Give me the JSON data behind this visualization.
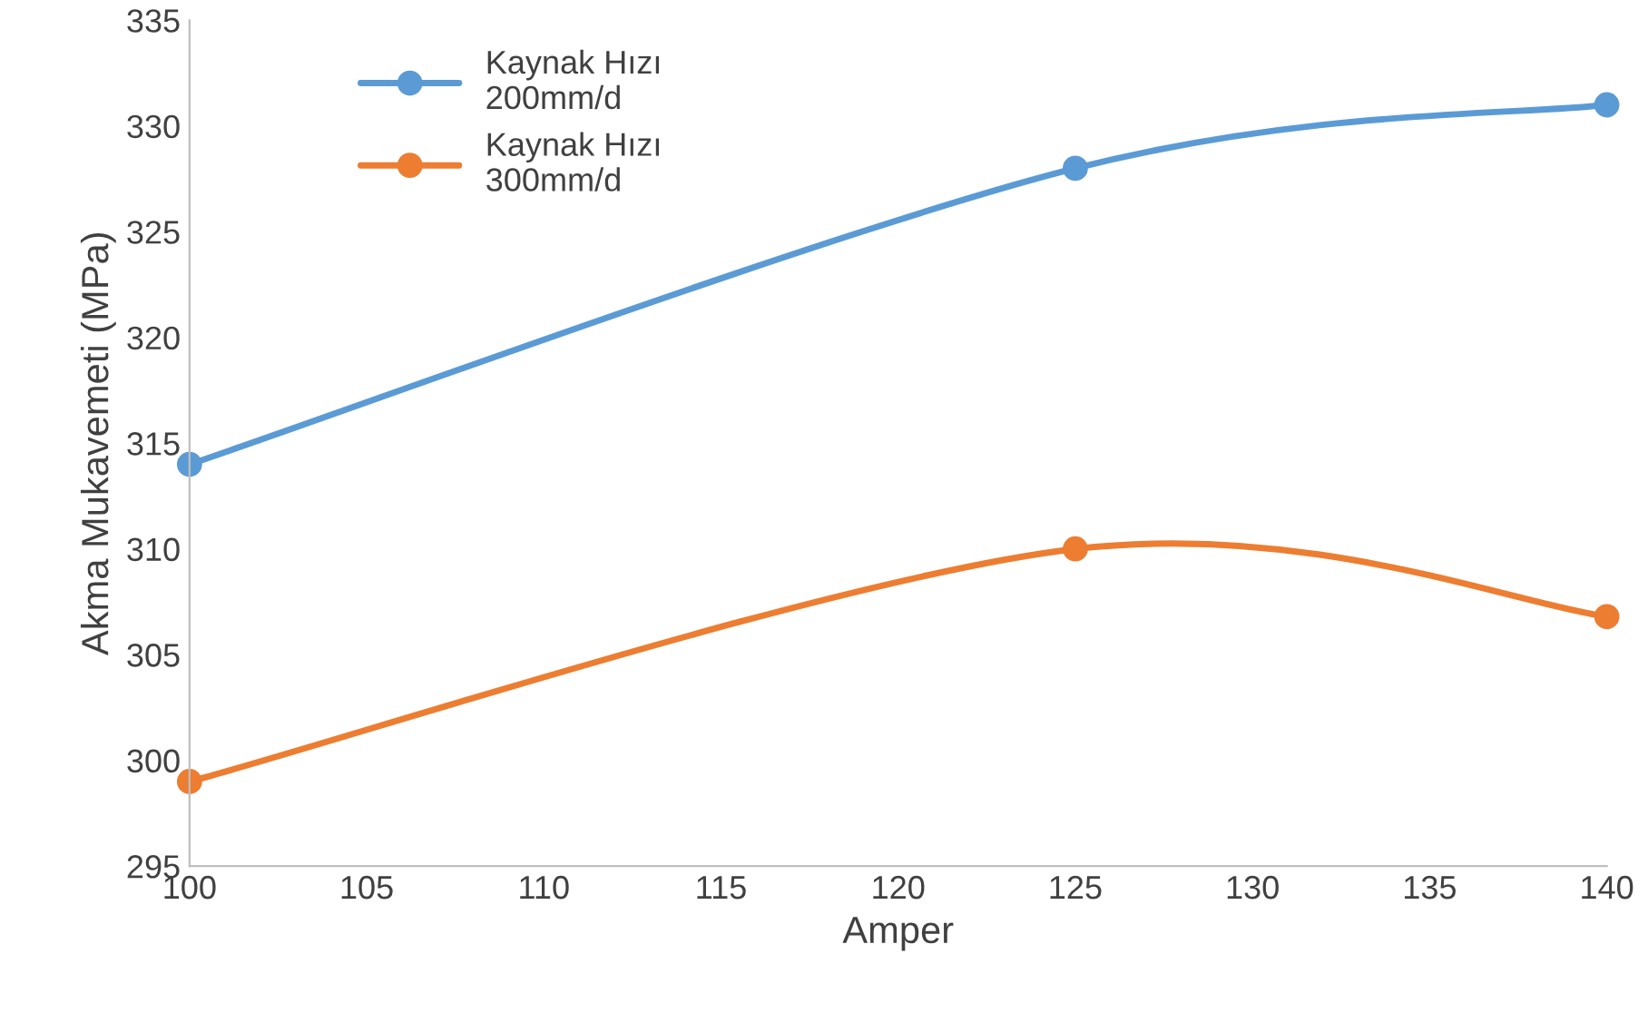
{
  "chart_data": {
    "type": "line",
    "xlabel": "Amper",
    "ylabel": "Akma Mukavemeti (MPa)",
    "x": [
      100,
      125,
      140
    ],
    "series": [
      {
        "name": "Kaynak Hızı 200mm/d",
        "color": "#5b9bd5",
        "values": [
          314,
          328,
          331
        ]
      },
      {
        "name": "Kaynak Hızı 300mm/d",
        "color": "#ed7d31",
        "values": [
          299,
          310,
          306.8
        ]
      }
    ],
    "xlim": [
      100,
      140
    ],
    "xticks": [
      100,
      105,
      110,
      115,
      120,
      125,
      130,
      135,
      140
    ],
    "ylim": [
      295,
      335
    ],
    "yticks": [
      295,
      300,
      305,
      310,
      315,
      320,
      325,
      330,
      335
    ],
    "grid": false,
    "legend": "top left",
    "marker": "circle",
    "line_style": "solid"
  }
}
